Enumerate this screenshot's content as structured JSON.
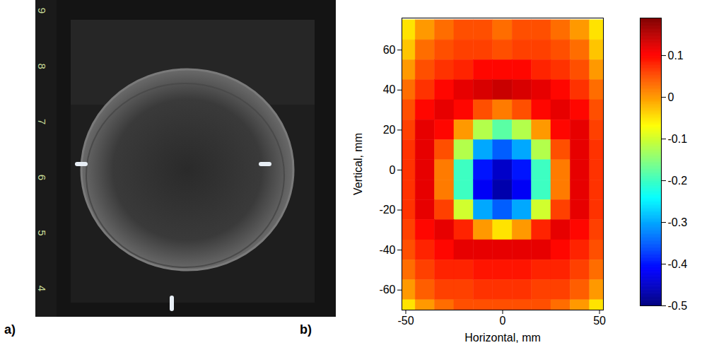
{
  "photo": {
    "panel_label": "a)",
    "ruler_labels": [
      9,
      8,
      7,
      6,
      5,
      4
    ]
  },
  "chart_data": {
    "type": "heatmap",
    "panel_label": "b)",
    "xlabel": "Horizontal, mm",
    "ylabel": "Vertical, mm",
    "xlim": [
      -52,
      52
    ],
    "ylim": [
      -70,
      76
    ],
    "xticks": [
      -50,
      0,
      50
    ],
    "yticks": [
      -60,
      -40,
      -20,
      0,
      20,
      40,
      60
    ],
    "x": [
      -50,
      -40,
      -30,
      -20,
      -10,
      0,
      10,
      20,
      30,
      40,
      50
    ],
    "y": [
      70,
      60,
      50,
      40,
      30,
      20,
      10,
      0,
      -10,
      -20,
      -30,
      -40,
      -50,
      -60,
      -70
    ],
    "values": [
      [
        -0.05,
        0.0,
        0.03,
        0.05,
        0.05,
        0.03,
        0.05,
        0.05,
        0.03,
        0.0,
        -0.05
      ],
      [
        -0.03,
        0.03,
        0.05,
        0.06,
        0.06,
        0.05,
        0.06,
        0.06,
        0.05,
        0.03,
        -0.03
      ],
      [
        0.0,
        0.05,
        0.07,
        0.08,
        0.1,
        0.1,
        0.1,
        0.08,
        0.07,
        0.05,
        0.0
      ],
      [
        0.03,
        0.07,
        0.1,
        0.12,
        0.13,
        0.14,
        0.13,
        0.12,
        0.1,
        0.07,
        0.03
      ],
      [
        0.05,
        0.1,
        0.12,
        0.1,
        0.05,
        0.02,
        0.05,
        0.1,
        0.12,
        0.1,
        0.05
      ],
      [
        0.06,
        0.12,
        0.1,
        0.0,
        -0.12,
        -0.18,
        -0.12,
        0.0,
        0.1,
        0.12,
        0.06
      ],
      [
        0.07,
        0.12,
        0.05,
        -0.12,
        -0.3,
        -0.35,
        -0.3,
        -0.12,
        0.05,
        0.12,
        0.07
      ],
      [
        0.07,
        0.12,
        0.02,
        -0.2,
        -0.4,
        -0.45,
        -0.4,
        -0.2,
        0.02,
        0.12,
        0.07
      ],
      [
        0.07,
        0.12,
        0.02,
        -0.2,
        -0.42,
        -0.47,
        -0.42,
        -0.2,
        0.02,
        0.12,
        0.07
      ],
      [
        0.07,
        0.12,
        0.06,
        -0.1,
        -0.3,
        -0.35,
        -0.3,
        -0.1,
        0.06,
        0.12,
        0.07
      ],
      [
        0.06,
        0.1,
        0.12,
        0.08,
        0.0,
        -0.05,
        0.0,
        0.08,
        0.12,
        0.1,
        0.06
      ],
      [
        0.05,
        0.08,
        0.1,
        0.12,
        0.12,
        0.12,
        0.12,
        0.12,
        0.1,
        0.08,
        0.05
      ],
      [
        0.03,
        0.06,
        0.08,
        0.08,
        0.09,
        0.09,
        0.09,
        0.08,
        0.08,
        0.06,
        0.03
      ],
      [
        0.0,
        0.04,
        0.06,
        0.06,
        0.07,
        0.07,
        0.07,
        0.06,
        0.06,
        0.04,
        0.0
      ],
      [
        -0.05,
        0.0,
        0.03,
        0.05,
        0.05,
        0.05,
        0.05,
        0.05,
        0.03,
        0.0,
        -0.05
      ]
    ],
    "colorbar": {
      "range": [
        -0.5,
        0.19
      ],
      "ticks": [
        -0.5,
        -0.4,
        -0.3,
        -0.2,
        -0.1,
        0,
        0.1
      ]
    }
  }
}
